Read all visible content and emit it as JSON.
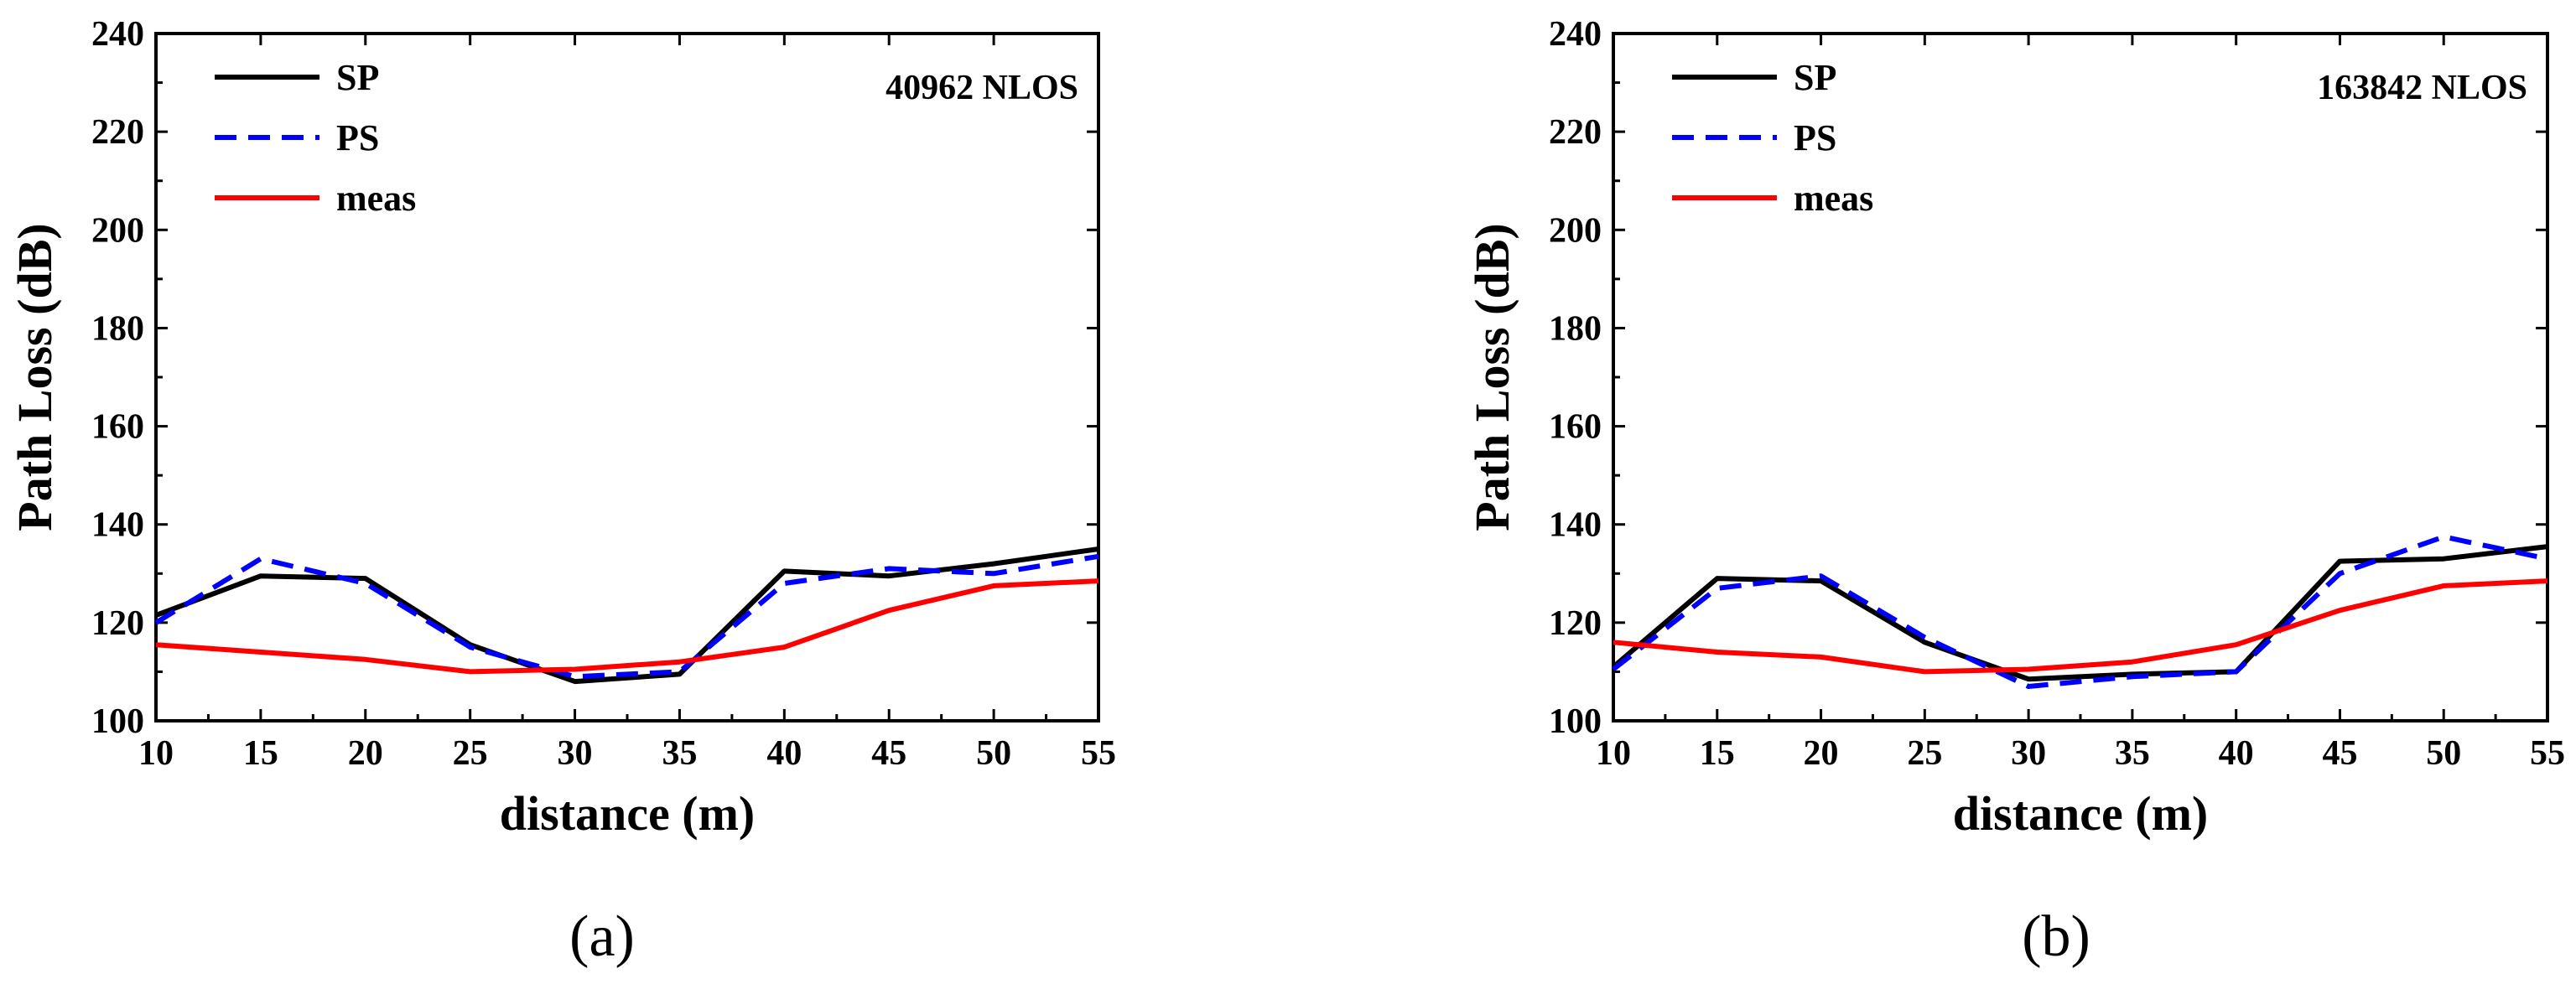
{
  "chart_data": [
    {
      "type": "line",
      "panel_caption": "a",
      "annotation": "40962  NLOS",
      "xlabel": "distance (m)",
      "ylabel": "Path Loss (dB)",
      "xlim": [
        10,
        55
      ],
      "ylim": [
        100,
        240
      ],
      "xticks": [
        10,
        15,
        20,
        25,
        30,
        35,
        40,
        45,
        50,
        55
      ],
      "yticks": [
        100,
        120,
        140,
        160,
        180,
        200,
        220,
        240
      ],
      "legend_position": "top-left",
      "series": [
        {
          "name": "SP",
          "style": "solid",
          "color": "#000000",
          "x": [
            10,
            15,
            20,
            25,
            30,
            35,
            40,
            45,
            50,
            55
          ],
          "y": [
            121.5,
            129.5,
            129,
            115.5,
            108,
            109.5,
            130.5,
            129.5,
            132,
            135
          ]
        },
        {
          "name": "PS",
          "style": "dashed",
          "color": "#0000ff",
          "x": [
            10,
            15,
            20,
            25,
            30,
            35,
            40,
            45,
            50,
            55
          ],
          "y": [
            120,
            133,
            128,
            115,
            109,
            110,
            128,
            131,
            130,
            133.5
          ]
        },
        {
          "name": "meas",
          "style": "solid",
          "color": "#ff0000",
          "x": [
            10,
            15,
            20,
            25,
            30,
            35,
            40,
            45,
            50,
            55
          ],
          "y": [
            115.5,
            114,
            112.5,
            110,
            110.5,
            112,
            115,
            122.5,
            127.5,
            128.5
          ]
        }
      ]
    },
    {
      "type": "line",
      "panel_caption": "b",
      "annotation": "163842  NLOS",
      "xlabel": "distance (m)",
      "ylabel": "Path Loss (dB)",
      "xlim": [
        10,
        55
      ],
      "ylim": [
        100,
        240
      ],
      "xticks": [
        10,
        15,
        20,
        25,
        30,
        35,
        40,
        45,
        50,
        55
      ],
      "yticks": [
        100,
        120,
        140,
        160,
        180,
        200,
        220,
        240
      ],
      "legend_position": "top-left",
      "series": [
        {
          "name": "SP",
          "style": "solid",
          "color": "#000000",
          "x": [
            10,
            15,
            20,
            25,
            30,
            35,
            40,
            45,
            50,
            55
          ],
          "y": [
            111,
            129,
            128.5,
            116,
            108.5,
            109.5,
            110,
            132.5,
            133,
            135.5
          ]
        },
        {
          "name": "PS",
          "style": "dashed",
          "color": "#0000ff",
          "x": [
            10,
            15,
            20,
            25,
            30,
            35,
            40,
            45,
            50,
            55
          ],
          "y": [
            110.5,
            127,
            129.5,
            117,
            107,
            109,
            110,
            130,
            137.5,
            133
          ]
        },
        {
          "name": "meas",
          "style": "solid",
          "color": "#ff0000",
          "x": [
            10,
            15,
            20,
            25,
            30,
            35,
            40,
            45,
            50,
            55
          ],
          "y": [
            116,
            114,
            113,
            110,
            110.5,
            112,
            115.5,
            122.5,
            127.5,
            128.5
          ]
        }
      ]
    }
  ]
}
